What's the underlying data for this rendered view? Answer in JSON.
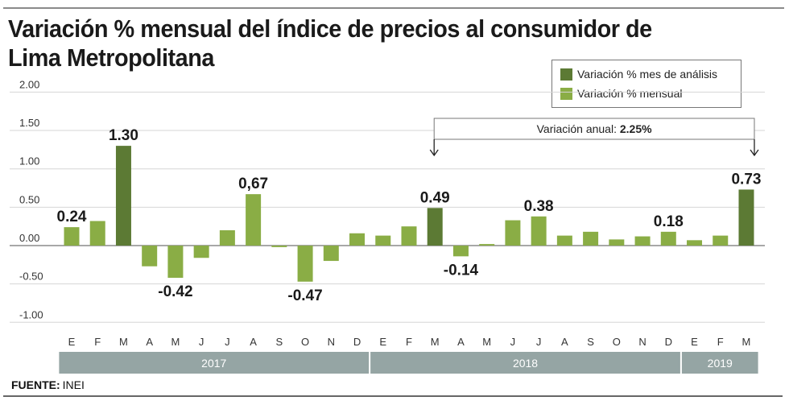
{
  "title": "Variación % mensual del índice de precios al consumidor de Lima Metropolitana",
  "title_lines": [
    "Variación % mensual del índice de precios al consumidor de",
    "Lima Metropolitana"
  ],
  "legend": [
    {
      "label": "Variación % mes de análisis",
      "color": "#5c7a34"
    },
    {
      "label": "Variación % mensual",
      "color": "#8aad45"
    }
  ],
  "annotation": {
    "prefix": "Variación anual: ",
    "value": "2.25%"
  },
  "source": {
    "label": "FUENTE:",
    "value": "INEI"
  },
  "colors": {
    "highlight": "#5c7a34",
    "normal": "#8aad45",
    "year_band": "#95a5a4",
    "grid": "#d6d6d6",
    "zero": "#8c8c8c"
  },
  "chart_data": {
    "type": "bar",
    "title": "Variación % mensual del índice de precios al consumidor de Lima Metropolitana",
    "xlabel": "",
    "ylabel": "",
    "ylim": [
      -1.0,
      2.0
    ],
    "yticks": [
      2.0,
      1.5,
      1.0,
      0.5,
      0.0,
      -0.5,
      -1.0
    ],
    "ytick_labels": [
      "2.00",
      "1.50",
      "1.00",
      "0.50",
      "0.00",
      "-0.50",
      "-1.00"
    ],
    "grid": true,
    "legend_position": "top-right",
    "categories": [
      "E",
      "F",
      "M",
      "A",
      "M",
      "J",
      "J",
      "A",
      "S",
      "O",
      "N",
      "D",
      "E",
      "F",
      "M",
      "A",
      "M",
      "J",
      "J",
      "A",
      "S",
      "O",
      "N",
      "D",
      "E",
      "F",
      "M"
    ],
    "years": [
      {
        "label": "2017",
        "count": 12
      },
      {
        "label": "2018",
        "count": 12
      },
      {
        "label": "2019",
        "count": 3
      }
    ],
    "values": [
      0.24,
      0.32,
      1.3,
      -0.27,
      -0.42,
      -0.16,
      0.2,
      0.67,
      -0.02,
      -0.47,
      -0.2,
      0.16,
      0.13,
      0.25,
      0.49,
      -0.14,
      0.02,
      0.33,
      0.38,
      0.13,
      0.18,
      0.08,
      0.12,
      0.18,
      0.07,
      0.13,
      0.73
    ],
    "highlight": [
      false,
      false,
      true,
      false,
      false,
      false,
      false,
      false,
      false,
      false,
      false,
      false,
      false,
      false,
      true,
      false,
      false,
      false,
      false,
      false,
      false,
      false,
      false,
      false,
      false,
      false,
      true
    ],
    "data_labels": {
      "0": "0.24",
      "2": "1.30",
      "4": "-0.42",
      "7": "0,67",
      "9": "-0.47",
      "14": "0.49",
      "15": "-0.14",
      "18": "0.38",
      "23": "0.18",
      "26": "0.73"
    },
    "series": [
      {
        "name": "Variación % mes de análisis",
        "indices": [
          2,
          14,
          26
        ]
      },
      {
        "name": "Variación % mensual",
        "indices": "all others"
      }
    ],
    "annotations": [
      {
        "text": "Variación anual: 2.25%",
        "from_index": 14,
        "to_index": 26
      }
    ]
  }
}
